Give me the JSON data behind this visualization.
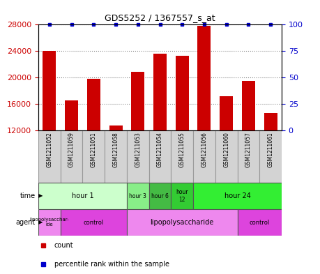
{
  "title": "GDS5252 / 1367557_s_at",
  "samples": [
    "GSM1211052",
    "GSM1211059",
    "GSM1211051",
    "GSM1211058",
    "GSM1211053",
    "GSM1211054",
    "GSM1211055",
    "GSM1211056",
    "GSM1211060",
    "GSM1211057",
    "GSM1211061"
  ],
  "counts": [
    24000,
    16500,
    19800,
    12700,
    20800,
    23600,
    23300,
    27800,
    17200,
    19500,
    14600
  ],
  "percentiles": [
    100,
    100,
    100,
    100,
    100,
    100,
    100,
    100,
    100,
    100,
    100
  ],
  "ylim_left": [
    12000,
    28000
  ],
  "ylim_right": [
    0,
    100
  ],
  "yticks_left": [
    12000,
    16000,
    20000,
    24000,
    28000
  ],
  "yticks_right": [
    0,
    25,
    50,
    75,
    100
  ],
  "bar_color": "#cc0000",
  "percentile_color": "#0000cc",
  "time_groups": [
    {
      "label": "hour 1",
      "start": 0,
      "end": 4,
      "color": "#ccffcc"
    },
    {
      "label": "hour 3",
      "start": 4,
      "end": 5,
      "color": "#88ee88"
    },
    {
      "label": "hour 6",
      "start": 5,
      "end": 6,
      "color": "#44bb44"
    },
    {
      "label": "hour\n12",
      "start": 6,
      "end": 7,
      "color": "#33cc33"
    },
    {
      "label": "hour 24",
      "start": 7,
      "end": 11,
      "color": "#33ee33"
    }
  ],
  "agent_groups": [
    {
      "label": "lipopolysacchar-\nide",
      "start": 0,
      "end": 1,
      "color": "#ee88ee"
    },
    {
      "label": "control",
      "start": 1,
      "end": 4,
      "color": "#dd44dd"
    },
    {
      "label": "lipopolysaccharide",
      "start": 4,
      "end": 9,
      "color": "#ee88ee"
    },
    {
      "label": "control",
      "start": 9,
      "end": 11,
      "color": "#dd44dd"
    }
  ],
  "grid_color": "#888888",
  "tick_label_color_left": "#cc0000",
  "tick_label_color_right": "#0000cc",
  "sample_box_color": "#d3d3d3",
  "sample_box_edge": "#999999"
}
